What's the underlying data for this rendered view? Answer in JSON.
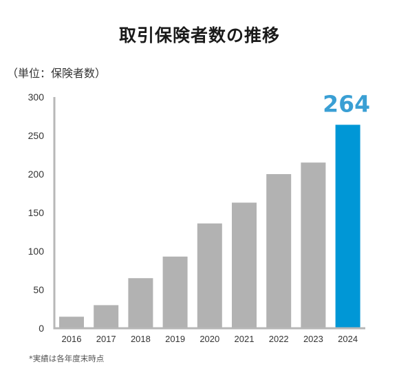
{
  "header": {
    "title": "取引保険者数の推移",
    "unit_label": "（単位：保険者数）"
  },
  "footer": {
    "footnote": "*実績は各年度末時点"
  },
  "colors": {
    "bar": "#b2b2b2",
    "highlight_bar": "#0097d6",
    "highlight_text": "#3a9fd4",
    "axis": "#b7b7b7"
  },
  "chart_data": {
    "type": "bar",
    "title": "取引保険者数の推移",
    "ylabel": "（単位：保険者数）",
    "xlabel": "",
    "categories": [
      "2016",
      "2017",
      "2018",
      "2019",
      "2020",
      "2021",
      "2022",
      "2023",
      "2024"
    ],
    "values": [
      15,
      30,
      65,
      93,
      136,
      163,
      200,
      215,
      264
    ],
    "ylim": [
      0,
      300
    ],
    "yticks": [
      0,
      50,
      100,
      150,
      200,
      250,
      300
    ],
    "grid": false,
    "highlight": {
      "category": "2024",
      "label": "264"
    }
  }
}
